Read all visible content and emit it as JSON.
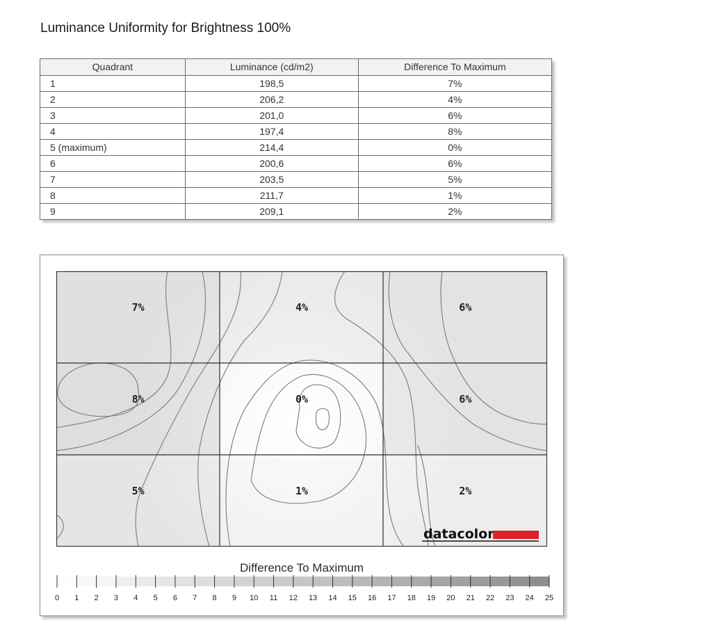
{
  "title": "Luminance Uniformity for Brightness 100%",
  "table": {
    "headers": [
      "Quadrant",
      "Luminance (cd/m2)",
      "Difference To Maximum"
    ],
    "rows": [
      [
        "1",
        "198,5",
        "7%"
      ],
      [
        "2",
        "206,2",
        "4%"
      ],
      [
        "3",
        "201,0",
        "6%"
      ],
      [
        "4",
        "197,4",
        "8%"
      ],
      [
        "5 (maximum)",
        "214,4",
        "0%"
      ],
      [
        "6",
        "200,6",
        "6%"
      ],
      [
        "7",
        "203,5",
        "5%"
      ],
      [
        "8",
        "211,7",
        "1%"
      ],
      [
        "9",
        "209,1",
        "2%"
      ]
    ]
  },
  "chart_data": {
    "type": "heatmap",
    "grid": {
      "rows": 3,
      "cols": 3
    },
    "cell_labels": [
      [
        "7%",
        "4%",
        "6%"
      ],
      [
        "8%",
        "0%",
        "6%"
      ],
      [
        "5%",
        "1%",
        "2%"
      ]
    ],
    "values": [
      [
        7,
        4,
        6
      ],
      [
        8,
        0,
        6
      ],
      [
        5,
        1,
        2
      ]
    ],
    "legend_title": "Difference To Maximum",
    "scale_min": 0,
    "scale_max": 25,
    "scale_ticks": [
      "0",
      "1",
      "2",
      "3",
      "4",
      "5",
      "6",
      "7",
      "8",
      "9",
      "10",
      "11",
      "12",
      "13",
      "14",
      "15",
      "16",
      "17",
      "18",
      "19",
      "20",
      "21",
      "22",
      "23",
      "24",
      "25"
    ],
    "contours": true,
    "logo": "datacolor",
    "colors": {
      "logo_bar": "#e0202a",
      "cell_min": "#ffffff",
      "cell_max": "#8c8c8c"
    }
  }
}
